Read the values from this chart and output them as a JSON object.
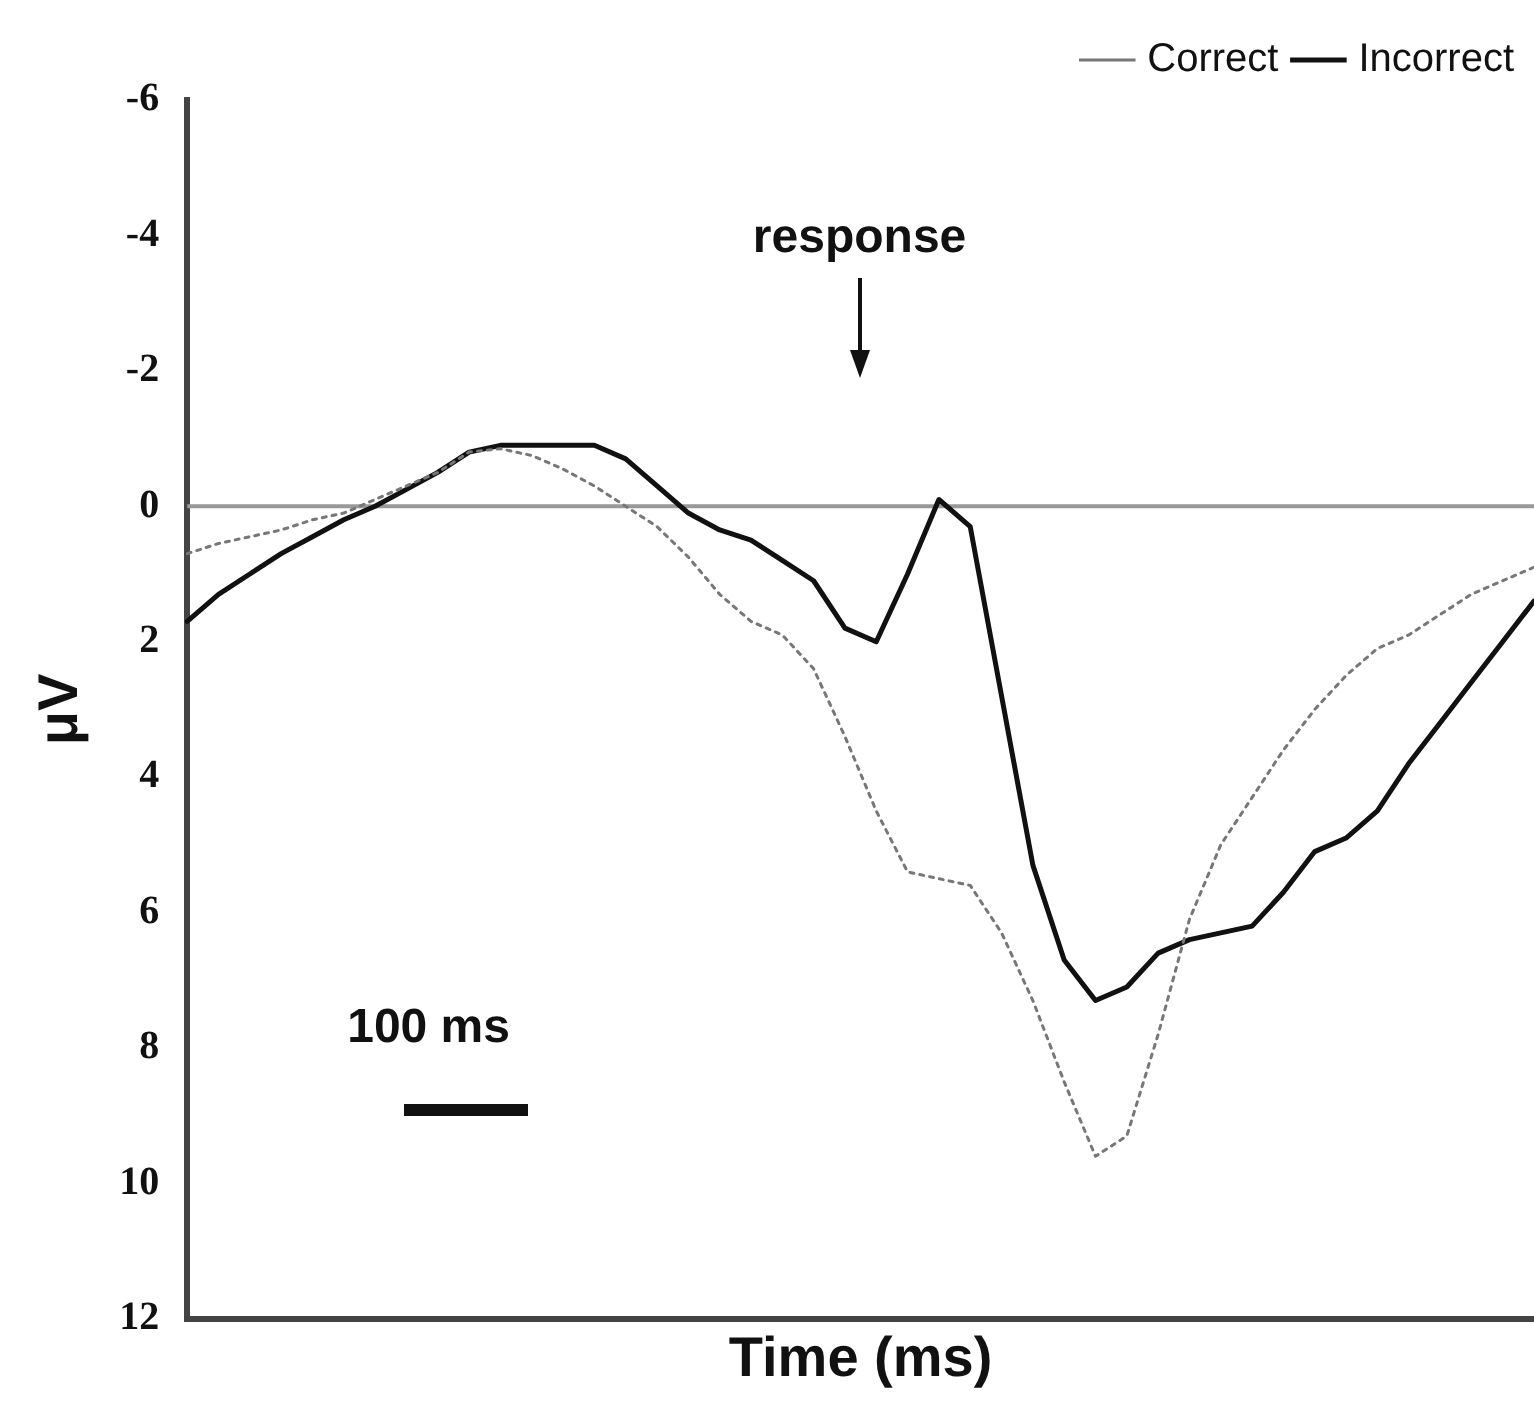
{
  "chart_data": {
    "type": "line",
    "xlabel": "Time (ms)",
    "ylabel": "μV",
    "categories": [
      null,
      null,
      null,
      null,
      null,
      null,
      null,
      null,
      null,
      null,
      null,
      null,
      null,
      null,
      null,
      null,
      null,
      null,
      null,
      null,
      null,
      null,
      null,
      null,
      null,
      null,
      null,
      null,
      null,
      null,
      null,
      null,
      null,
      null,
      null,
      null,
      null,
      null,
      null,
      null,
      null,
      null,
      null,
      null
    ],
    "series": [
      {
        "name": "Correct",
        "color": "#777777",
        "line_style": "dotted",
        "values": [
          0.7,
          0.55,
          0.45,
          0.35,
          0.2,
          0.1,
          -0.1,
          -0.3,
          -0.5,
          -0.8,
          -0.85,
          -0.75,
          -0.55,
          -0.3,
          0,
          0.3,
          0.75,
          1.3,
          1.7,
          1.9,
          2.4,
          3.4,
          4.5,
          5.4,
          5.5,
          5.6,
          6.3,
          7.3,
          8.5,
          9.6,
          9.3,
          7.8,
          6.1,
          5.0,
          4.3,
          3.6,
          3.0,
          2.5,
          2.1,
          1.9,
          1.6,
          1.3,
          1.1,
          0.9
        ]
      },
      {
        "name": "Incorrect",
        "color": "#111111",
        "line_style": "solid",
        "values": [
          1.7,
          1.3,
          1.0,
          0.7,
          0.45,
          0.2,
          0,
          -0.25,
          -0.5,
          -0.8,
          -0.9,
          -0.9,
          -0.9,
          -0.9,
          -0.7,
          -0.3,
          0.1,
          0.35,
          0.5,
          0.8,
          1.1,
          1.8,
          2.0,
          1.0,
          -0.1,
          0.3,
          2.8,
          5.3,
          6.7,
          7.3,
          7.1,
          6.6,
          6.4,
          6.3,
          6.2,
          5.7,
          5.1,
          4.9,
          4.5,
          3.8,
          3.2,
          2.6,
          2.0,
          1.4
        ]
      }
    ],
    "ylim": [
      12,
      -6
    ],
    "yticks": [
      -6,
      -4,
      -2,
      0,
      2,
      4,
      6,
      8,
      10,
      12
    ],
    "tick_labels": "y",
    "grid": false,
    "legend": "top right",
    "marker": "none",
    "ref_lines": [
      {
        "axis": "y",
        "value": 0,
        "color": "#999999"
      }
    ],
    "annotations": [
      "response",
      "100 ms"
    ]
  }
}
